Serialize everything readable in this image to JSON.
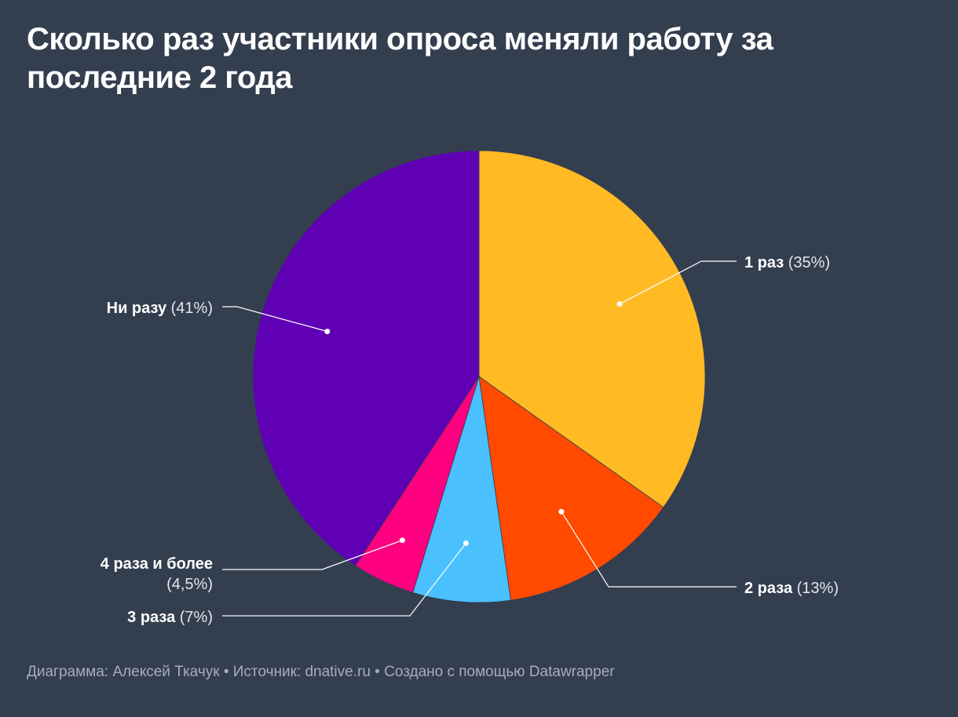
{
  "title": "Сколько раз участники опроса меняли работу за последние 2 года",
  "footer": {
    "chart_prefix": "Диаграмма: ",
    "author": "Алексей Ткачук",
    "source_prefix": " • Источник: ",
    "source": "dnative.ru",
    "created_prefix": " • Создано с помощью ",
    "tool": "Datawrapper"
  },
  "chart_data": {
    "type": "pie",
    "title": "Сколько раз участники опроса меняли работу за последние 2 года",
    "slices": [
      {
        "label": "1 раз",
        "value": 35,
        "value_label": "(35%)",
        "color": "#ffba24"
      },
      {
        "label": "2 раза",
        "value": 13,
        "value_label": "(13%)",
        "color": "#ff4a00"
      },
      {
        "label": "3 раза",
        "value": 7,
        "value_label": "(7%)",
        "color": "#4ac0ff"
      },
      {
        "label": "4 раза и более",
        "value": 4.5,
        "value_label": "(4,5%)",
        "color": "#ff0080"
      },
      {
        "label": "Ни разу",
        "value": 41,
        "value_label": "(41%)",
        "color": "#6000b4"
      }
    ]
  }
}
